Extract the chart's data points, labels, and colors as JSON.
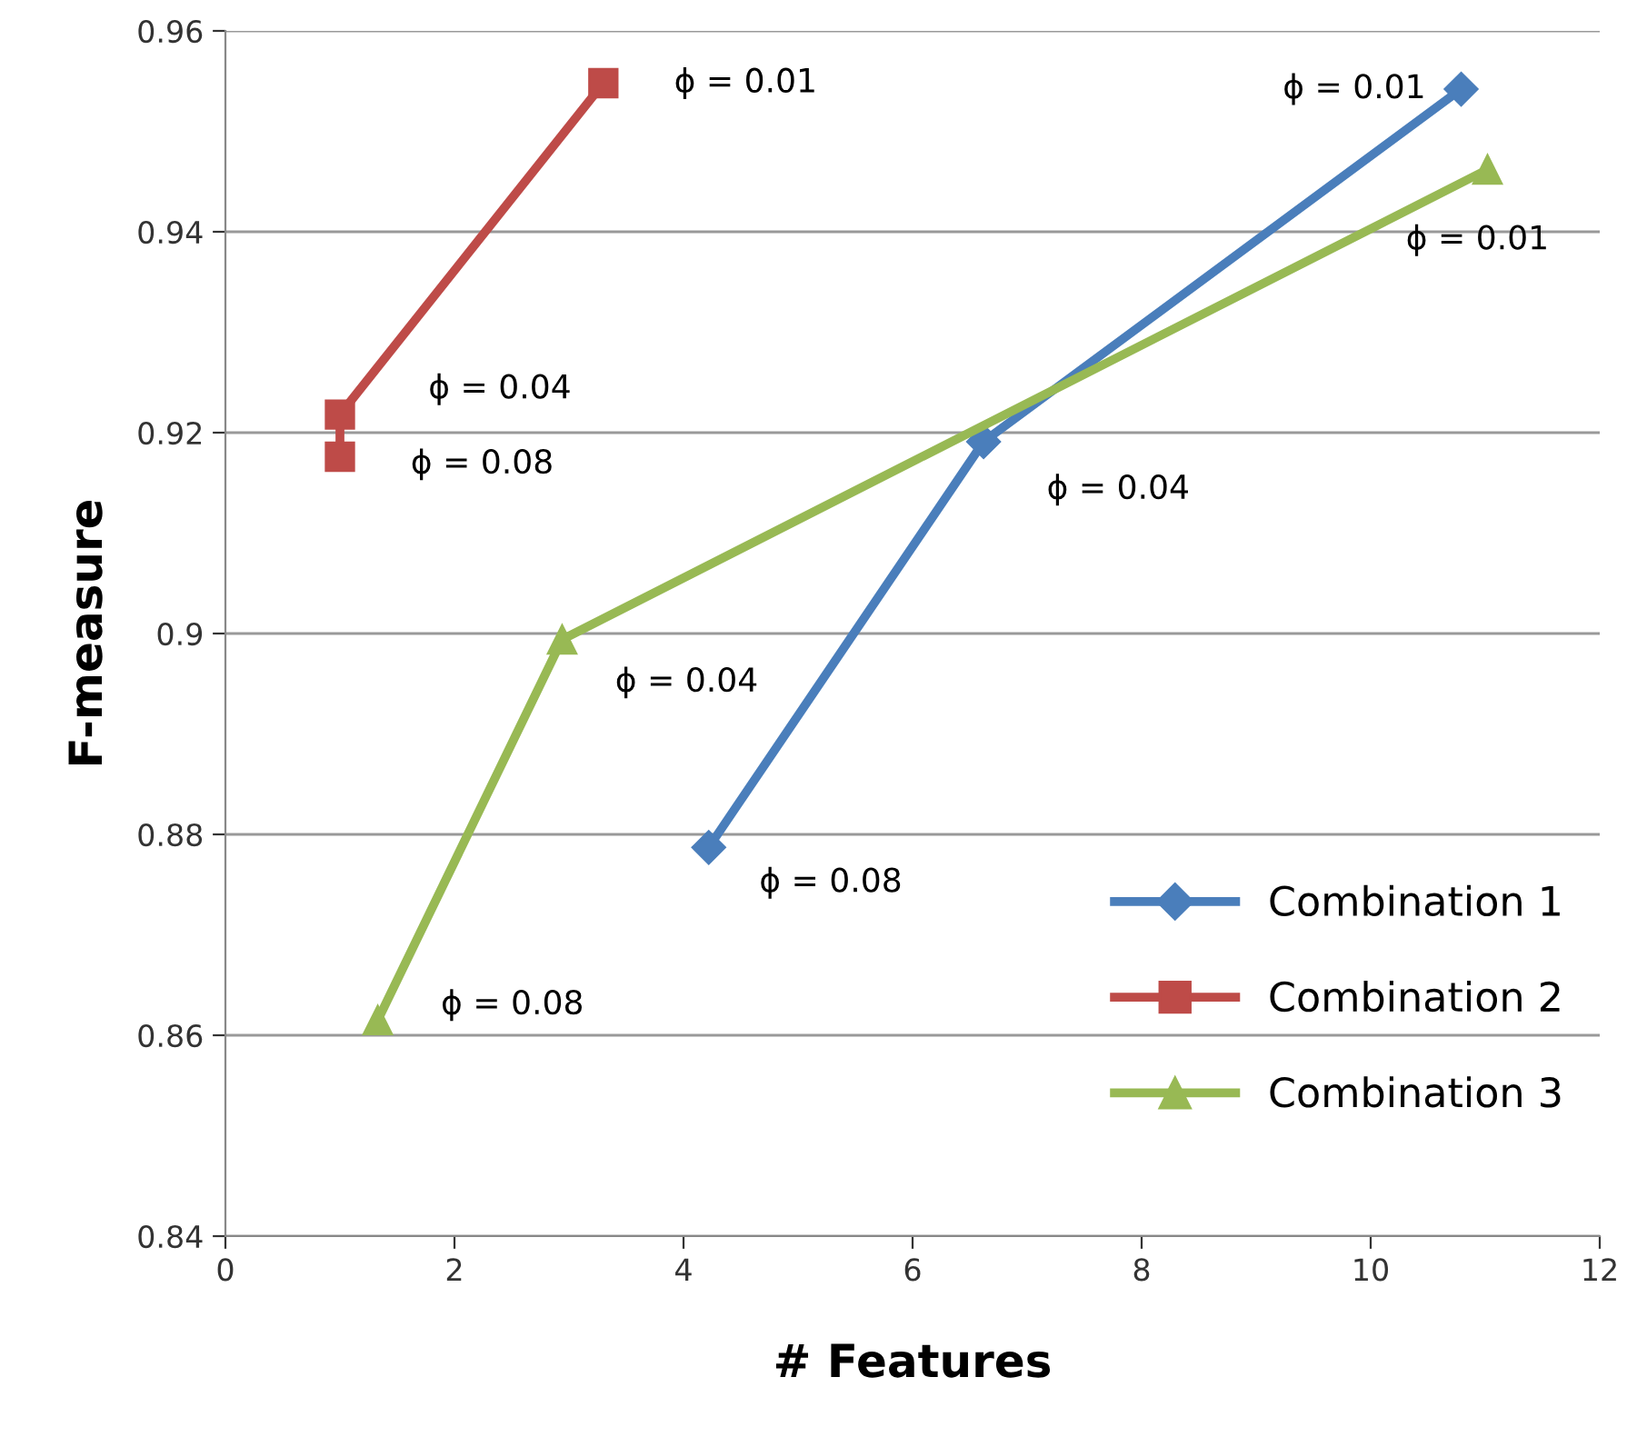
{
  "chart_data": {
    "type": "line",
    "xlabel": "# Features",
    "ylabel": "F-measure",
    "xlim": [
      0,
      12
    ],
    "xticks": [
      0,
      2,
      4,
      6,
      8,
      10,
      12
    ],
    "ylim": [
      0.84,
      0.96
    ],
    "yticks": [
      0.84,
      0.86,
      0.88,
      0.9,
      0.92,
      0.94,
      0.96
    ],
    "grid": "y",
    "legend": "bottom right",
    "line_style": "solid",
    "series": [
      {
        "name": "Combination 1",
        "color": "#4a7ebb",
        "marker": "diamond",
        "x": [
          4.22,
          6.62,
          10.79
        ],
        "values": [
          0.8787,
          0.9191,
          0.9542
        ]
      },
      {
        "name": "Combination 2",
        "color": "#be4b48",
        "marker": "square",
        "x": [
          1.0,
          1.0,
          3.3
        ],
        "values": [
          0.9176,
          0.9218,
          0.9548
        ]
      },
      {
        "name": "Combination 3",
        "color": "#98b954",
        "marker": "triangle",
        "x": [
          1.33,
          2.94,
          11.02
        ],
        "values": [
          0.8615,
          0.8994,
          0.9462
        ]
      }
    ],
    "annotations": [
      {
        "text": "ϕ = 0.01",
        "x": 10.79,
        "y": 0.9542
      },
      {
        "text": "ϕ = 0.04",
        "x": 6.62,
        "y": 0.9191
      },
      {
        "text": "ϕ = 0.08",
        "x": 4.22,
        "y": 0.8787
      },
      {
        "text": "ϕ = 0.01",
        "x": 3.3,
        "y": 0.9548
      },
      {
        "text": "ϕ = 0.04",
        "x": 1.0,
        "y": 0.9218
      },
      {
        "text": "ϕ = 0.08",
        "x": 1.0,
        "y": 0.9176
      },
      {
        "text": "ϕ = 0.01",
        "x": 11.02,
        "y": 0.9462
      },
      {
        "text": "ϕ = 0.04",
        "x": 2.94,
        "y": 0.8994
      },
      {
        "text": "ϕ = 0.08",
        "x": 1.33,
        "y": 0.8615
      }
    ]
  }
}
